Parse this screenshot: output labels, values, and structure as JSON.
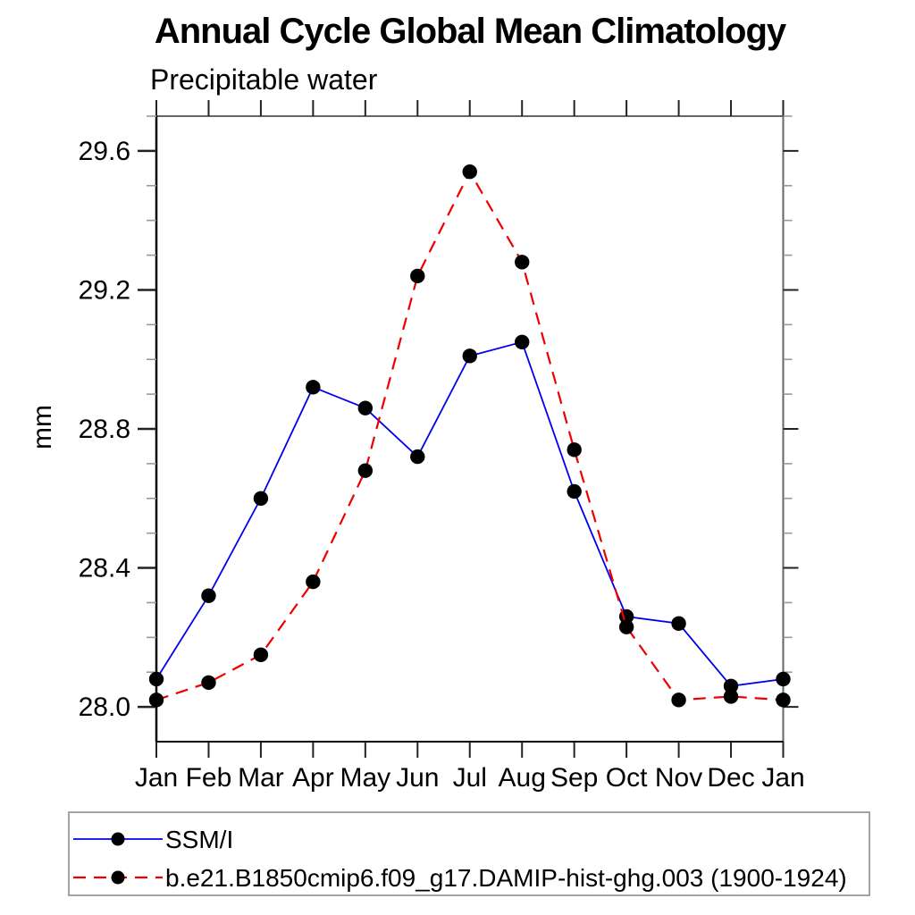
{
  "title": "Annual Cycle Global Mean Climatology",
  "subtitle": "Precipitable water",
  "units": "mm",
  "chart_data": {
    "type": "line",
    "title": "Annual Cycle Global Mean Climatology",
    "subtitle": "Precipitable water",
    "xlabel": "",
    "ylabel": "mm",
    "categories": [
      "Jan",
      "Feb",
      "Mar",
      "Apr",
      "May",
      "Jun",
      "Jul",
      "Aug",
      "Sep",
      "Oct",
      "Nov",
      "Dec",
      "Jan"
    ],
    "series": [
      {
        "name": "SSM/I",
        "line_style": "solid",
        "line_color": "#0000ee",
        "marker": "filled-circle",
        "marker_color": "#000000",
        "values": [
          28.08,
          28.32,
          28.6,
          28.92,
          28.86,
          28.72,
          29.01,
          29.05,
          28.62,
          28.26,
          28.24,
          28.06,
          28.08
        ]
      },
      {
        "name": "b.e21.B1850cmip6.f09_g17.DAMIP-hist-ghg.003 (1900-1924)",
        "line_style": "dashed",
        "line_color": "#ee0000",
        "marker": "filled-circle",
        "marker_color": "#000000",
        "values": [
          28.02,
          28.07,
          28.15,
          28.36,
          28.68,
          29.24,
          29.54,
          29.28,
          28.74,
          28.23,
          28.02,
          28.03,
          28.02
        ]
      }
    ],
    "ylim": [
      27.9,
      29.7
    ],
    "ytick_major": [
      28.0,
      28.4,
      28.8,
      29.2,
      29.6
    ],
    "ytick_major_labels": [
      "28.0",
      "28.4",
      "28.8",
      "29.2",
      "29.6"
    ],
    "ytick_minor_step": 0.1,
    "grid": false,
    "legend_position": "bottom-left"
  },
  "colors": {
    "axis_left_bottom": "#000000",
    "axis_top_right": "#666666",
    "major_tick": "#222222",
    "minor_tick": "#999999",
    "legend_border": "#999999",
    "background": "#ffffff"
  }
}
